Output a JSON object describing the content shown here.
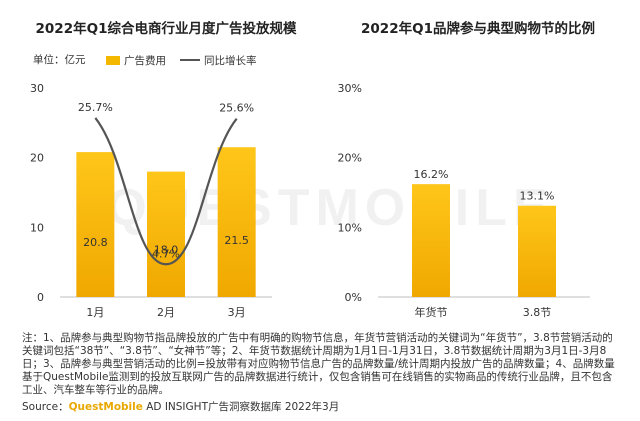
{
  "chart_data": [
    {
      "type": "bar",
      "title": "2022年Q1综合电商行业月度广告投放规模",
      "unit_label": "单位：亿元",
      "legend": [
        "广告费用",
        "同比增长率"
      ],
      "categories": [
        "1月",
        "2月",
        "3月"
      ],
      "y_ticks": [
        "0",
        "10",
        "20",
        "30"
      ],
      "ylim": [
        0,
        30
      ],
      "series": [
        {
          "name": "广告费用",
          "values": [
            20.8,
            18.0,
            21.5
          ],
          "labels": [
            "20.8",
            "18.0",
            "21.5"
          ],
          "color": "#f5b800"
        },
        {
          "name": "同比增长率",
          "type": "line",
          "values": [
            25.7,
            4.7,
            25.6
          ],
          "labels": [
            "25.7%",
            "4.7%",
            "25.6%"
          ],
          "color": "#555555"
        }
      ]
    },
    {
      "type": "bar",
      "title": "2022年Q1品牌参与典型购物节的比例",
      "categories": [
        "年货节",
        "3.8节"
      ],
      "y_ticks": [
        "0%",
        "10%",
        "20%",
        "30%"
      ],
      "ylim": [
        0,
        30
      ],
      "values": [
        16.2,
        13.1
      ],
      "labels": [
        "16.2%",
        "13.1%"
      ],
      "color": "#f5b800"
    }
  ],
  "note": "注：1、品牌参与典型购物节指品牌投放的广告中有明确的购物节信息，年货节营销活动的关键词为“年货节”，3.8节营销活动的关键词包括“38节”、“3.8节”、“女神节”等；2、年货节数据统计周期为1月1日-1月31日，3.8节数据统计周期为3月1日-3月8日；3、品牌参与典型营销活动的比例=投放带有对应购物节信息广告的品牌数量/统计周期内投放广告的品牌数量；4、品牌数量基于QuestMobile监测到的投放互联网广告的品牌数据进行统计，仅包含销售可在线销售的实物商品的传统行业品牌，且不包含工业、汽车整车等行业的品牌。",
  "source": {
    "prefix": "Source：",
    "brand": "QuestMobile",
    "suffix": " AD INSIGHT广告洞察数据库 2022年3月"
  },
  "watermark": "QUESTMOBILE"
}
